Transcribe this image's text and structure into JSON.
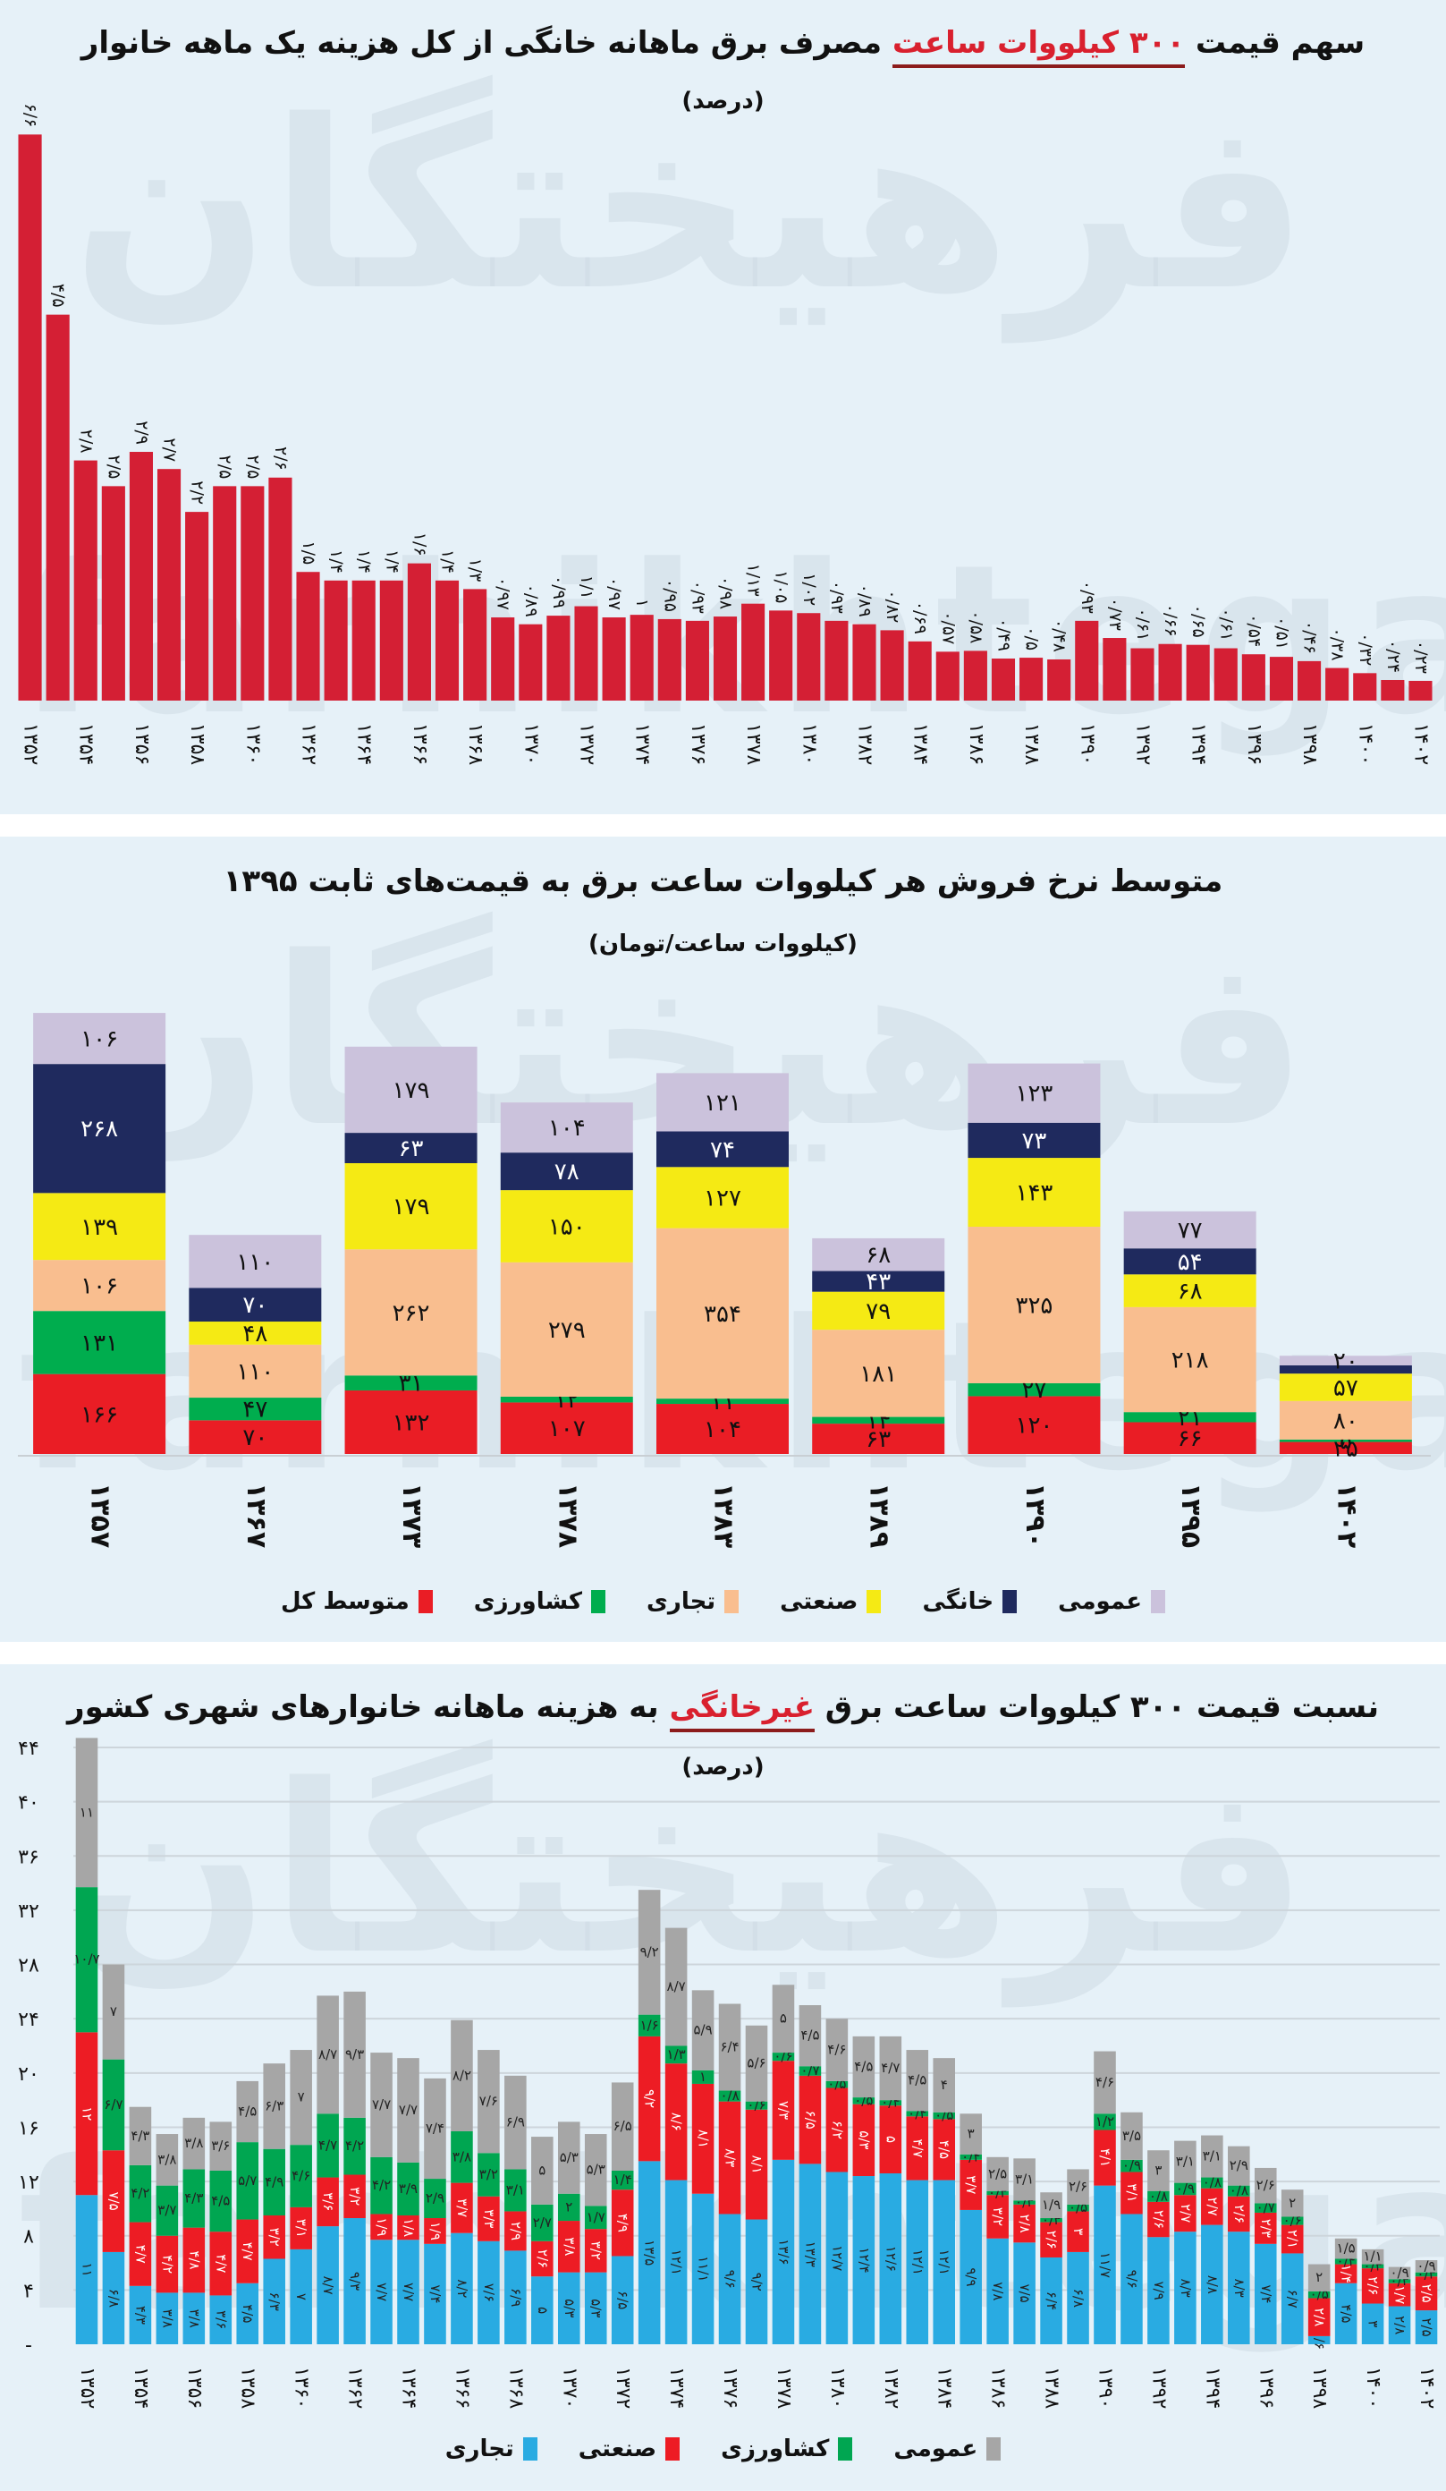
{
  "chart_data": [
    {
      "type": "bar",
      "title_parts": [
        "سهم قیمت ",
        "۳۰۰ کیلووات ساعت",
        " مصرف برق ماهانه خانگی از کل هزینه یک ماهه خانوار"
      ],
      "subtitle": "(درصد)",
      "xlabel": "",
      "ylabel": "درصد",
      "color": "#d41f34",
      "ylim": [
        0,
        7
      ],
      "grid": false,
      "categories": [
        "۱۳۵۲",
        "۱۳۵۳",
        "۱۳۵۴",
        "۱۳۵۵",
        "۱۳۵۶",
        "۱۳۵۷",
        "۱۳۵۸",
        "۱۳۵۹",
        "۱۳۶۰",
        "۱۳۶۱",
        "۱۳۶۲",
        "۱۳۶۳",
        "۱۳۶۴",
        "۱۳۶۵",
        "۱۳۶۶",
        "۱۳۶۷",
        "۱۳۶۸",
        "۱۳۶۹",
        "۱۳۷۰",
        "۱۳۷۱",
        "۱۳۷۲",
        "۱۳۷۳",
        "۱۳۷۴",
        "۱۳۷۵",
        "۱۳۷۶",
        "۱۳۷۷",
        "۱۳۷۸",
        "۱۳۷۹",
        "۱۳۸۰",
        "۱۳۸۱",
        "۱۳۸۲",
        "۱۳۸۳",
        "۱۳۸۴",
        "۱۳۸۵",
        "۱۳۸۶",
        "۱۳۸۷",
        "۱۳۸۸",
        "۱۳۸۹",
        "۱۳۹۰",
        "۱۳۹۱",
        "۱۳۹۲",
        "۱۳۹۳",
        "۱۳۹۴",
        "۱۳۹۵",
        "۱۳۹۶",
        "۱۳۹۷",
        "۱۳۹۸",
        "۱۳۹۹",
        "۱۴۰۰",
        "۱۴۰۱",
        "۱۴۰۲"
      ],
      "tick_labels": [
        "۱۳۵۲",
        "۱۳۵۴",
        "۱۳۵۶",
        "۱۳۵۸",
        "۱۳۶۰",
        "۱۳۶۲",
        "۱۳۶۴",
        "۱۳۶۶",
        "۱۳۶۸",
        "۱۳۷۰",
        "۱۳۷۲",
        "۱۳۷۴",
        "۱۳۷۶",
        "۱۳۷۸",
        "۱۳۸۰",
        "۱۳۸۲",
        "۱۳۸۴",
        "۱۳۸۶",
        "۱۳۸۸",
        "۱۳۹۰",
        "۱۳۹۲",
        "۱۳۹۴",
        "۱۳۹۶",
        "۱۳۹۸",
        "۱۴۰۰",
        "۱۴۰۲"
      ],
      "values": [
        6.6,
        4.5,
        2.8,
        2.5,
        2.9,
        2.7,
        2.2,
        2.5,
        2.5,
        2.6,
        1.5,
        1.4,
        1.4,
        1.4,
        1.6,
        1.4,
        1.3,
        0.97,
        0.89,
        0.99,
        1.1,
        0.97,
        1,
        0.95,
        0.93,
        0.98,
        1.13,
        1.05,
        1.02,
        0.93,
        0.89,
        0.82,
        0.69,
        0.57,
        0.58,
        0.49,
        0.5,
        0.48,
        0.93,
        0.73,
        0.61,
        0.66,
        0.65,
        0.61,
        0.54,
        0.51,
        0.46,
        0.38,
        0.32,
        0.24,
        0.23
      ],
      "labels": [
        "۶/۶",
        "۴/۵",
        "۲/۸",
        "۲/۵",
        "۲/۹",
        "۲/۷",
        "۲/۲",
        "۲/۵",
        "۲/۵",
        "۲/۶",
        "۱/۵",
        "۱/۴",
        "۱/۴",
        "۱/۴",
        "۱/۶",
        "۱/۴",
        "۱/۳",
        "۰/۹۷",
        "۰/۸۹",
        "۰/۹۹",
        "۱/۱",
        "۰/۹۷",
        "۱",
        "۰/۹۵",
        "۰/۹۳",
        "۰/۹۸",
        "۱/۱۳",
        "۱/۰۵",
        "۱/۰۲",
        "۰/۹۳",
        "۰/۸۹",
        "۰/۸۲",
        "۰/۶۹",
        "۰/۵۷",
        "۰/۵۸",
        "۰/۴۹",
        "۰/۵",
        "۰/۴۸",
        "۰/۹۳",
        "۰/۷۳",
        "۰/۶۱",
        "۰/۶۶",
        "۰/۶۵",
        "۰/۶۱",
        "۰/۵۴",
        "۰/۵۱",
        "۰/۴۶",
        "۰/۳۸",
        "۰/۳۲",
        "۰/۲۴",
        "۰/۲۳"
      ]
    },
    {
      "type": "bar",
      "stacked": true,
      "title": "متوسط نرخ فروش هر کیلووات ساعت برق به قیمت‌های ثابت ۱۳۹۵",
      "subtitle": "(کیلووات ساعت/تومان)",
      "xlabel": "",
      "ylabel": "تومان",
      "ylim": [
        0,
        1050
      ],
      "grid": false,
      "legend_position": "bottom",
      "categories": [
        "۱۳۵۷",
        "۱۳۶۷",
        "۱۳۷۳",
        "۱۳۷۸",
        "۱۳۸۳",
        "۱۳۸۹",
        "۱۳۹۰",
        "۱۳۹۵",
        "۱۴۰۲"
      ],
      "series": [
        {
          "name": "متوسط کل",
          "color": "#ea1d25",
          "values": [
            166,
            70,
            132,
            107,
            104,
            63,
            120,
            66,
            25
          ],
          "labels": [
            "۱۶۶",
            "۷۰",
            "۱۳۲",
            "۱۰۷",
            "۱۰۴",
            "۶۳",
            "۱۲۰",
            "۶۶",
            "۲۵"
          ]
        },
        {
          "name": "کشاورزی",
          "color": "#00ad4e",
          "values": [
            131,
            47,
            31,
            12,
            11,
            14,
            27,
            21,
            5
          ],
          "labels": [
            "۱۳۱",
            "۴۷",
            "۳۱",
            "۱۲",
            "۱۱",
            "۱۴",
            "۲۷",
            "۲۱",
            "۵"
          ]
        },
        {
          "name": "تجاری",
          "color": "#f9be8f",
          "values": [
            106,
            110,
            262,
            279,
            354,
            181,
            325,
            218,
            80
          ],
          "labels": [
            "۱۰۶",
            "۱۱۰",
            "۲۶۲",
            "۲۷۹",
            "۳۵۴",
            "۱۸۱",
            "۳۲۵",
            "۲۱۸",
            "۸۰"
          ]
        },
        {
          "name": "صنعتی",
          "color": "#f5ea14",
          "values": [
            139,
            48,
            179,
            150,
            127,
            79,
            143,
            68,
            57
          ],
          "labels": [
            "۱۳۹",
            "۴۸",
            "۱۷۹",
            "۱۵۰",
            "۱۲۷",
            "۷۹",
            "۱۴۳",
            "۶۸",
            "۵۷"
          ]
        },
        {
          "name": "خانگی",
          "color": "#1f2a5e",
          "values": [
            268,
            70,
            63,
            78,
            74,
            43,
            73,
            54,
            17
          ],
          "labels": [
            "۲۶۸",
            "۷۰",
            "۶۳",
            "۷۸",
            "۷۴",
            "۴۳",
            "۷۳",
            "۵۴",
            ""
          ]
        },
        {
          "name": "عمومی",
          "color": "#cbc2dc",
          "values": [
            106,
            110,
            179,
            104,
            121,
            68,
            123,
            77,
            20
          ],
          "labels": [
            "۱۰۶",
            "۱۱۰",
            "۱۷۹",
            "۱۰۴",
            "۱۲۱",
            "۶۸",
            "۱۲۳",
            "۷۷",
            "۲۰"
          ]
        }
      ],
      "legend_order": [
        "عمومی",
        "خانگی",
        "صنعتی",
        "تجاری",
        "کشاورزی",
        "متوسط کل"
      ]
    },
    {
      "type": "bar",
      "stacked": true,
      "title_parts": [
        "نسبت قیمت ۳۰۰ کیلووات ساعت برق ",
        "غیرخانگی",
        " به هزینه ماهانه خانوارهای شهری کشور"
      ],
      "subtitle": "(درصد)",
      "xlabel": "",
      "ylabel": "درصد",
      "ylim": [
        0,
        44
      ],
      "yticks": [
        0,
        4,
        8,
        12,
        16,
        20,
        24,
        28,
        32,
        36,
        40,
        44
      ],
      "ytick_labels": [
        "-",
        "۴",
        "۸",
        "۱۲",
        "۱۶",
        "۲۰",
        "۲۴",
        "۲۸",
        "۳۲",
        "۳۶",
        "۴۰",
        "۴۴"
      ],
      "grid": true,
      "legend_position": "bottom",
      "categories": [
        "۱۳۵۲",
        "۱۳۵۳",
        "۱۳۵۴",
        "۱۳۵۵",
        "۱۳۵۶",
        "۱۳۵۷",
        "۱۳۵۸",
        "۱۳۵۹",
        "۱۳۶۰",
        "۱۳۶۱",
        "۱۳۶۲",
        "۱۳۶۳",
        "۱۳۶۴",
        "۱۳۶۵",
        "۱۳۶۶",
        "۱۳۶۷",
        "۱۳۶۸",
        "۱۳۶۹",
        "۱۳۷۰",
        "۱۳۷۱",
        "۱۳۷۲",
        "۱۳۷۳",
        "۱۳۷۴",
        "۱۳۷۵",
        "۱۳۷۶",
        "۱۳۷۷",
        "۱۳۷۸",
        "۱۳۷۹",
        "۱۳۸۰",
        "۱۳۸۱",
        "۱۳۸۲",
        "۱۳۸۳",
        "۱۳۸۴",
        "۱۳۸۵",
        "۱۳۸۶",
        "۱۳۸۷",
        "۱۳۸۸",
        "۱۳۸۹",
        "۱۳۹۰",
        "۱۳۹۱",
        "۱۳۹۲",
        "۱۳۹۳",
        "۱۳۹۴",
        "۱۳۹۵",
        "۱۳۹۶",
        "۱۳۹۷",
        "۱۳۹۸",
        "۱۳۹۹",
        "۱۴۰۰",
        "۱۴۰۱",
        "۱۴۰۲"
      ],
      "tick_labels": [
        "۱۳۵۲",
        "۱۳۵۴",
        "۱۳۵۶",
        "۱۳۵۸",
        "۱۳۶۰",
        "۱۳۶۲",
        "۱۳۶۴",
        "۱۳۶۶",
        "۱۳۶۸",
        "۱۳۷۰",
        "۱۳۷۲",
        "۱۳۷۴",
        "۱۳۷۶",
        "۱۳۷۸",
        "۱۳۸۰",
        "۱۳۸۲",
        "۱۳۸۴",
        "۱۳۸۶",
        "۱۳۸۸",
        "۱۳۹۰",
        "۱۳۹۲",
        "۱۳۹۴",
        "۱۳۹۶",
        "۱۳۹۸",
        "۱۴۰۰",
        "۱۴۰۲"
      ],
      "series": [
        {
          "name": "تجاری",
          "color": "#29abe2",
          "values": [
            11,
            6.8,
            4.3,
            3.8,
            3.8,
            3.6,
            4.5,
            6.3,
            7,
            8.7,
            9.3,
            7.7,
            7.7,
            7.4,
            8.2,
            7.6,
            6.9,
            5,
            5.3,
            5.3,
            6.5,
            13.5,
            12.1,
            11.1,
            9.6,
            9.2,
            13.6,
            13.3,
            12.7,
            12.4,
            12.6,
            12.1,
            12.1,
            9.9,
            7.8,
            7.5,
            6.4,
            6.8,
            11.7,
            9.6,
            7.9,
            8.3,
            8.8,
            8.3,
            7.4,
            6.7,
            0.6,
            4.5,
            3,
            2.8,
            2.5
          ]
        },
        {
          "name": "صنعتی",
          "color": "#ed1c24",
          "values": [
            12,
            7.5,
            4.7,
            4.2,
            4.8,
            4.7,
            4.7,
            3.2,
            3.1,
            3.6,
            3.2,
            1.9,
            1.8,
            1.9,
            3.7,
            3.3,
            2.9,
            2.6,
            3.8,
            3.2,
            4.9,
            9.2,
            8.6,
            8.1,
            8.3,
            8.1,
            7.3,
            6.5,
            6.2,
            5.3,
            5,
            4.7,
            4.5,
            3.7,
            3.2,
            2.8,
            2.6,
            3,
            4.1,
            3.1,
            2.6,
            2.7,
            2.7,
            2.6,
            2.3,
            2.1,
            2.8,
            1.4,
            2.6,
            1.7,
            2.5
          ]
        },
        {
          "name": "کشاورزی",
          "color": "#00a651",
          "values": [
            10.7,
            6.7,
            4.2,
            3.7,
            4.3,
            4.5,
            5.7,
            4.9,
            4.6,
            4.7,
            4.2,
            4.2,
            3.9,
            2.9,
            3.8,
            3.2,
            3.1,
            2.7,
            2,
            1.7,
            1.4,
            1.6,
            1.3,
            1,
            0.8,
            0.6,
            0.6,
            0.7,
            0.5,
            0.5,
            0.4,
            0.4,
            0.5,
            0.4,
            0.3,
            0.3,
            0.3,
            0.5,
            1.2,
            0.9,
            0.8,
            0.9,
            0.8,
            0.8,
            0.7,
            0.6,
            0.5,
            0.4,
            0.3,
            0.3,
            0.3
          ]
        },
        {
          "name": "عمومی",
          "color": "#a6a6a6",
          "values": [
            11,
            7,
            4.3,
            3.8,
            3.8,
            3.6,
            4.5,
            6.3,
            7,
            8.7,
            9.3,
            7.7,
            7.7,
            7.4,
            8.2,
            7.6,
            6.9,
            5,
            5.3,
            5.3,
            6.5,
            9.2,
            8.7,
            5.9,
            6.4,
            5.6,
            5,
            4.5,
            4.6,
            4.5,
            4.7,
            4.5,
            4,
            3,
            2.5,
            3.1,
            1.9,
            2.6,
            4.6,
            3.5,
            3,
            3.1,
            3.1,
            2.9,
            2.6,
            2,
            2,
            1.5,
            1.1,
            0.9,
            0.9
          ]
        }
      ],
      "legend_order": [
        "عمومی",
        "کشاورزی",
        "صنعتی",
        "تجاری"
      ]
    }
  ],
  "watermark": {
    "fa": "فرهیختگان",
    "en": "farhikhtegan"
  }
}
